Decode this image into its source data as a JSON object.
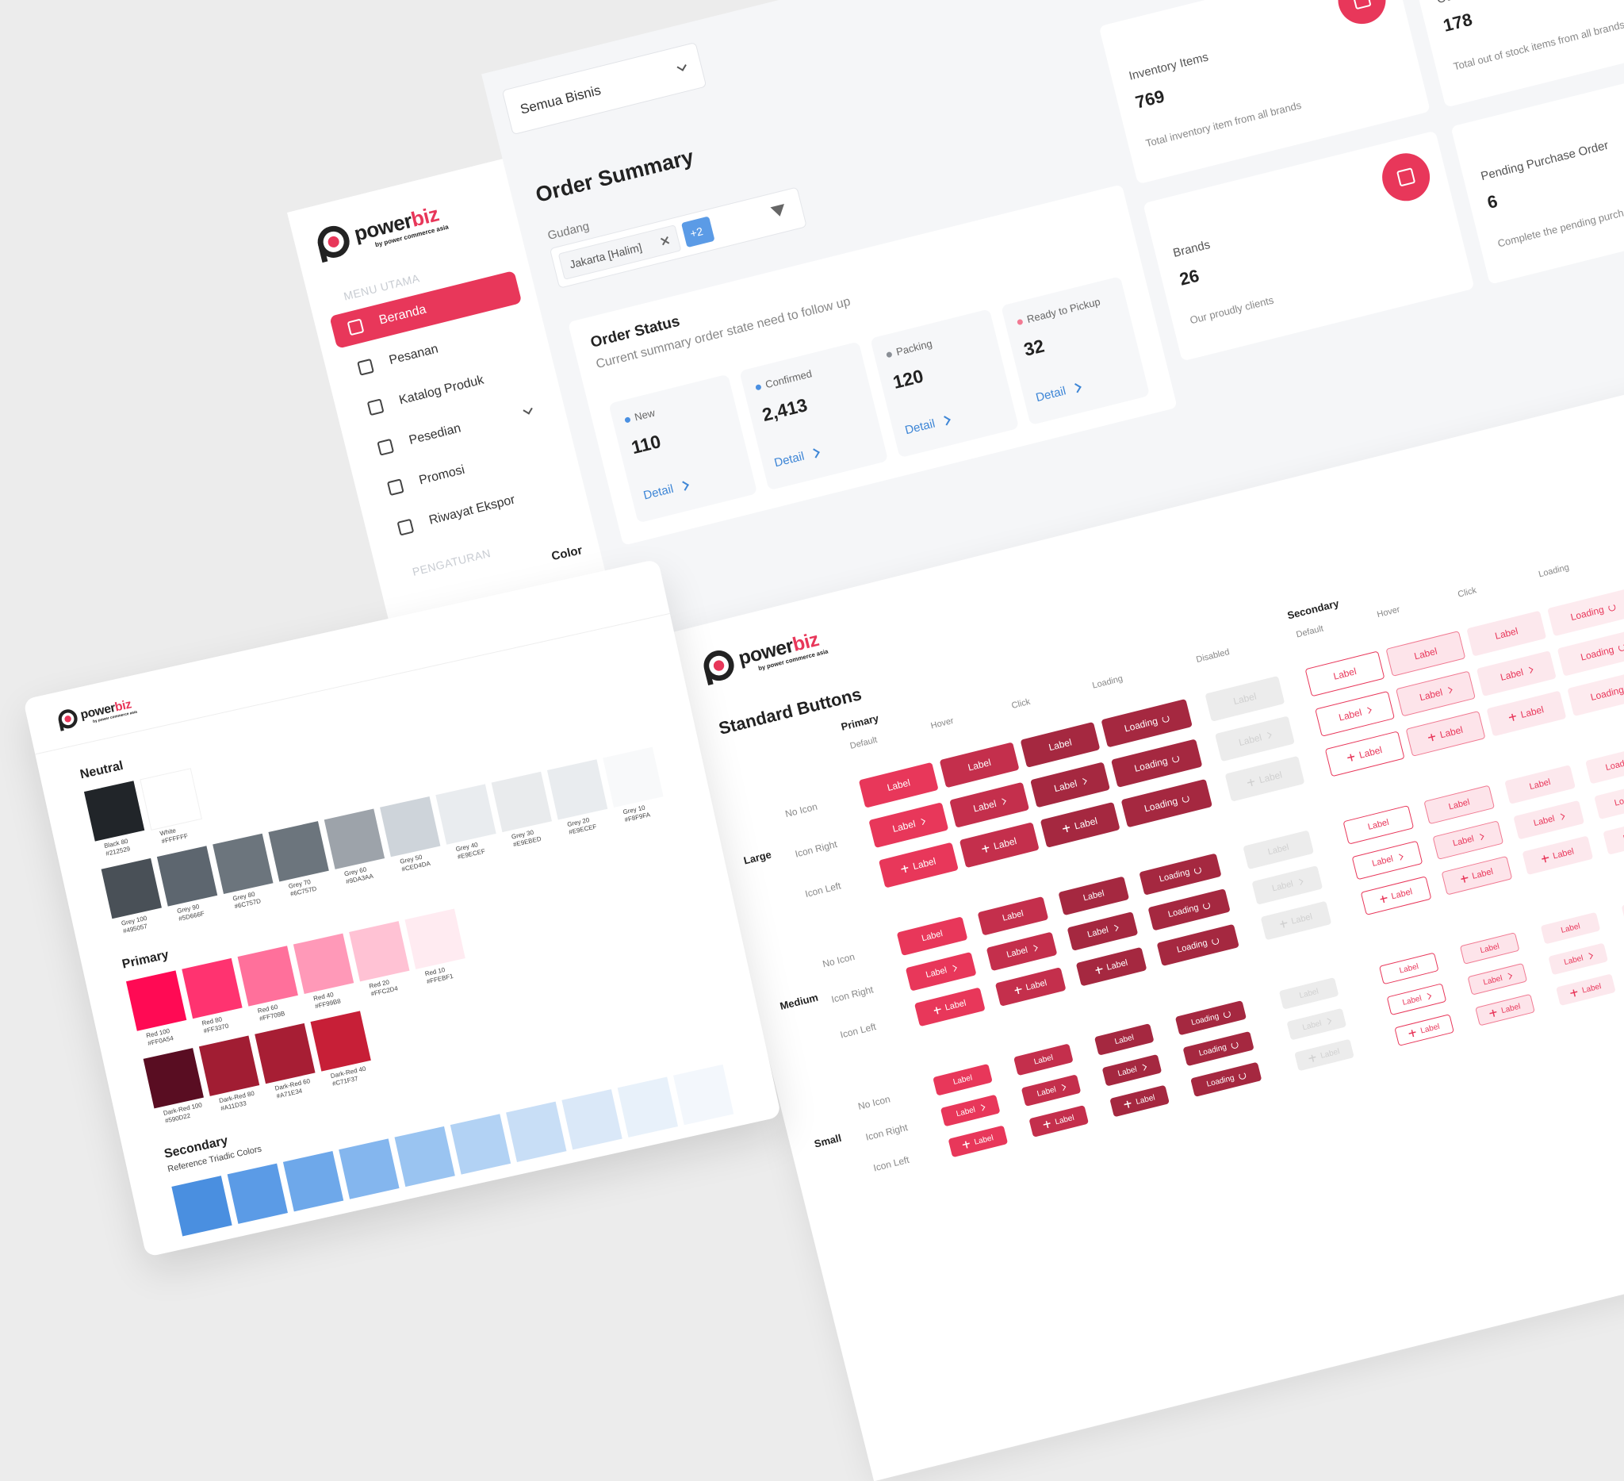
{
  "brand": {
    "name_a": "power",
    "name_b": "biz",
    "tagline": "by power commerce asia"
  },
  "dashboard": {
    "business_select": "Semua Bisnis",
    "menu_heading": "MENU UTAMA",
    "menu": [
      "Beranda",
      "Pesanan",
      "Katalog Produk",
      "Pesedian",
      "Promosi",
      "Riwayat Ekspor"
    ],
    "settings_heading": "PENGATURAN",
    "order_summary": {
      "title": "Order Summary",
      "filter_label": "Gudang",
      "filter_chip": "Jakarta [Halim]",
      "filter_more": "+2"
    },
    "order_status": {
      "title": "Order Status",
      "subtitle": "Current summary order state need to follow up",
      "detail": "Detail",
      "items": [
        {
          "label": "New",
          "value": "110",
          "color": "#4a90e2"
        },
        {
          "label": "Confirmed",
          "value": "2,413",
          "color": "#4a90e2"
        },
        {
          "label": "Packing",
          "value": "120",
          "color": "#8a8f96"
        },
        {
          "label": "Ready to Pickup",
          "value": "32",
          "color": "#f27a93"
        }
      ]
    },
    "stats": [
      {
        "title": "Inventory Items",
        "value": "769",
        "note": "Total inventory item from all brands"
      },
      {
        "title": "Brands",
        "value": "26",
        "note": "Our proudly clients"
      },
      {
        "title": "Out of Stock Items",
        "value": "178",
        "note": "Total out of stock items from all brands"
      },
      {
        "title": "Pending Purchase Order",
        "value": "6",
        "note": "Complete the pending purchase o"
      }
    ]
  },
  "colors": {
    "title": "Color",
    "groups": [
      {
        "name": "Neutral",
        "rows": [
          [
            {
              "name": "Black 80",
              "hex": "#212529"
            },
            {
              "name": "White",
              "hex": "#FFFFFF"
            }
          ],
          [
            {
              "name": "Grey 100",
              "hex": "#495057"
            },
            {
              "name": "Grey 90",
              "hex": "#5D666F"
            },
            {
              "name": "Grey 80",
              "hex": "#6C757D"
            },
            {
              "name": "Grey 70",
              "hex": "#6C757D"
            },
            {
              "name": "Grey 60",
              "hex": "#9DA3AA"
            },
            {
              "name": "Grey 50",
              "hex": "#CED4DA"
            },
            {
              "name": "Grey 40",
              "hex": "#E9ECEF"
            },
            {
              "name": "Grey 30",
              "hex": "#E9EBED"
            },
            {
              "name": "Grey 20",
              "hex": "#E9ECEF"
            },
            {
              "name": "Grey 10",
              "hex": "#F8F9FA"
            }
          ]
        ]
      },
      {
        "name": "Primary",
        "rows": [
          [
            {
              "name": "Red 100",
              "hex": "#FF0A54"
            },
            {
              "name": "Red 80",
              "hex": "#FF3370"
            },
            {
              "name": "Red 60",
              "hex": "#FF709B"
            },
            {
              "name": "Red 40",
              "hex": "#FF99B8"
            },
            {
              "name": "Red 20",
              "hex": "#FFC2D4"
            },
            {
              "name": "Red 10",
              "hex": "#FFEBF1"
            }
          ],
          [
            {
              "name": "Dark-Red 100",
              "hex": "#590D22"
            },
            {
              "name": "Dark-Red 80",
              "hex": "#A11D33"
            },
            {
              "name": "Dark-Red 60",
              "hex": "#A71E34"
            },
            {
              "name": "Dark-Red 40",
              "hex": "#C71F37"
            }
          ]
        ]
      }
    ],
    "secondary_title": "Secondary",
    "secondary_note": "Reference Triadic Colors"
  },
  "buttons": {
    "title": "Standard Buttons",
    "sections": [
      {
        "name": "Primary",
        "columns": [
          "Default",
          "Hover",
          "Click",
          "Loading",
          "Disabled"
        ]
      },
      {
        "name": "Secondary",
        "columns": [
          "Default",
          "Hover",
          "Click",
          "Loading"
        ]
      }
    ],
    "sizes": [
      "Large",
      "Medium",
      "Small"
    ],
    "rows": [
      "No Icon",
      "Icon Right",
      "Icon Left"
    ],
    "button_label": "Label",
    "loading_label": "Loading"
  }
}
